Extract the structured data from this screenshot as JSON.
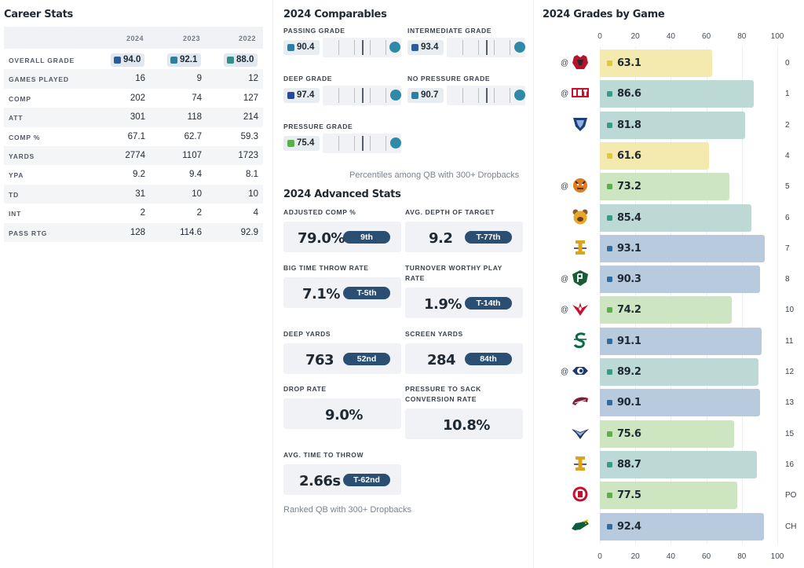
{
  "career": {
    "title": "Career Stats",
    "years": [
      "2024",
      "2023",
      "2022"
    ],
    "grades": [
      {
        "value": "94.0",
        "color": "#2a5d9a"
      },
      {
        "value": "92.1",
        "color": "#2c7fa0"
      },
      {
        "value": "88.0",
        "color": "#2f8f8a"
      }
    ],
    "rows": [
      {
        "label": "OVERALL GRADE"
      },
      {
        "label": "GAMES PLAYED",
        "values": [
          "16",
          "9",
          "12"
        ]
      },
      {
        "label": "COMP",
        "values": [
          "202",
          "74",
          "127"
        ]
      },
      {
        "label": "ATT",
        "values": [
          "301",
          "118",
          "214"
        ]
      },
      {
        "label": "COMP %",
        "values": [
          "67.1",
          "62.7",
          "59.3"
        ]
      },
      {
        "label": "YARDS",
        "values": [
          "2774",
          "1107",
          "1723"
        ]
      },
      {
        "label": "YPA",
        "values": [
          "9.2",
          "9.4",
          "8.1"
        ]
      },
      {
        "label": "TD",
        "values": [
          "31",
          "10",
          "10"
        ]
      },
      {
        "label": "INT",
        "values": [
          "2",
          "2",
          "4"
        ]
      },
      {
        "label": "PASS RTG",
        "values": [
          "128",
          "114.6",
          "92.9"
        ]
      }
    ]
  },
  "comparables": {
    "title": "2024 Comparables",
    "items": [
      {
        "label": "PASSING GRADE",
        "value": "90.4",
        "color": "#2c7fa0",
        "percentile": 92
      },
      {
        "label": "INTERMEDIATE GRADE",
        "value": "93.4",
        "color": "#2a5d9a",
        "percentile": 99
      },
      {
        "label": "DEEP GRADE",
        "value": "97.4",
        "color": "#2348a0",
        "percentile": 97
      },
      {
        "label": "NO PRESSURE GRADE",
        "value": "90.7",
        "color": "#2c7fa0",
        "percentile": 94
      },
      {
        "label": "PRESSURE GRADE",
        "value": "75.4",
        "color": "#5aaf4a",
        "percentile": 95
      }
    ],
    "note": "Percentiles among QB with 300+ Dropbacks"
  },
  "advanced": {
    "title": "2024 Advanced Stats",
    "items": [
      {
        "label": "ADJUSTED COMP %",
        "value": "79.0%",
        "rank": "9th"
      },
      {
        "label": "AVG. DEPTH OF TARGET",
        "value": "9.2",
        "rank": "T-77th"
      },
      {
        "label": "BIG TIME THROW RATE",
        "value": "7.1%",
        "rank": "T-5th"
      },
      {
        "label": "TURNOVER WORTHY PLAY RATE",
        "value": "1.9%",
        "rank": "T-14th"
      },
      {
        "label": "DEEP YARDS",
        "value": "763",
        "rank": "52nd"
      },
      {
        "label": "SCREEN YARDS",
        "value": "284",
        "rank": "84th"
      },
      {
        "label": "DROP RATE",
        "value": "9.0%",
        "rank": ""
      },
      {
        "label": "PRESSURE TO SACK CONVERSION RATE",
        "value": "10.8%",
        "rank": ""
      },
      {
        "label": "AVG. TIME TO THROW",
        "value": "2.66s",
        "rank": "T-62nd"
      }
    ],
    "note": "Ranked QB with 300+ Dropbacks"
  },
  "games": {
    "title": "2024 Grades by Game",
    "axis_ticks": [
      "0",
      "20",
      "40",
      "60",
      "80",
      "100"
    ],
    "rows": [
      {
        "away": "@",
        "logo": "lobo-logo-icon",
        "grade": 63.1,
        "label": "63.1",
        "week": "0"
      },
      {
        "away": "@",
        "logo": "ut-logo-icon",
        "grade": 86.6,
        "label": "86.6",
        "week": "1"
      },
      {
        "away": "",
        "logo": "maine-logo-icon",
        "grade": 81.8,
        "label": "81.8",
        "week": "2"
      },
      {
        "away": "",
        "logo": "",
        "grade": 61.6,
        "label": "61.6",
        "week": "4"
      },
      {
        "away": "@",
        "logo": "tiger-logo-icon",
        "grade": 73.2,
        "label": "73.2",
        "week": "5"
      },
      {
        "away": "",
        "logo": "bear-logo-icon",
        "grade": 85.4,
        "label": "85.4",
        "week": "6"
      },
      {
        "away": "",
        "logo": "idaho-logo-icon",
        "grade": 93.1,
        "label": "93.1",
        "week": "7"
      },
      {
        "away": "@",
        "logo": "portland-state-logo-icon",
        "grade": 90.3,
        "label": "90.3",
        "week": "8"
      },
      {
        "away": "@",
        "logo": "eagle-logo-icon",
        "grade": 74.2,
        "label": "74.2",
        "week": "10"
      },
      {
        "away": "",
        "logo": "sacramento-state-logo-icon",
        "grade": 91.1,
        "label": "91.1",
        "week": "11"
      },
      {
        "away": "@",
        "logo": "uc-davis-logo-icon",
        "grade": 89.2,
        "label": "89.2",
        "week": "12"
      },
      {
        "away": "",
        "logo": "griz-logo-icon",
        "grade": 90.1,
        "label": "90.1",
        "week": "13"
      },
      {
        "away": "",
        "logo": "unc-logo-icon",
        "grade": 75.6,
        "label": "75.6",
        "week": "15"
      },
      {
        "away": "",
        "logo": "idaho-logo-icon",
        "grade": 88.7,
        "label": "88.7",
        "week": "16"
      },
      {
        "away": "",
        "logo": "south-dakota-logo-icon",
        "grade": 77.5,
        "label": "77.5",
        "week": "PO"
      },
      {
        "away": "",
        "logo": "ndsu-logo-icon",
        "grade": 92.4,
        "label": "92.4",
        "week": "CH"
      }
    ]
  }
}
